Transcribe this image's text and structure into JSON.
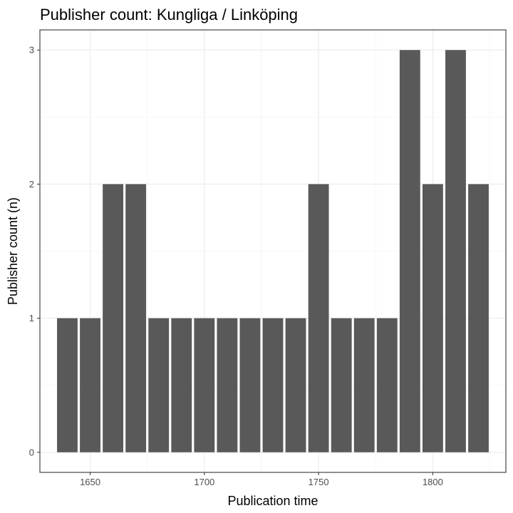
{
  "chart_data": {
    "type": "bar",
    "title": "Publisher count:  Kungliga / Linköping",
    "xlabel": "Publication time",
    "ylabel": "Publisher count (n)",
    "x": [
      1640,
      1650,
      1660,
      1670,
      1680,
      1690,
      1700,
      1710,
      1720,
      1730,
      1740,
      1750,
      1760,
      1770,
      1780,
      1790,
      1800,
      1810,
      1820
    ],
    "values": [
      1,
      1,
      2,
      2,
      1,
      1,
      1,
      1,
      1,
      1,
      1,
      2,
      1,
      1,
      1,
      3,
      2,
      3,
      2
    ],
    "bar_width": 9,
    "xlim": [
      1628,
      1832
    ],
    "ylim": [
      -0.15,
      3.15
    ],
    "x_ticks": [
      1650,
      1700,
      1750,
      1800
    ],
    "x_tick_labels": [
      "1650",
      "1700",
      "1750",
      "1800"
    ],
    "y_ticks": [
      0,
      1,
      2,
      3
    ],
    "y_tick_labels": [
      "0",
      "1",
      "2",
      "3"
    ],
    "grid": true,
    "legend": "none",
    "colors": {
      "bar": "#595959",
      "panel_border": "#333333",
      "grid_major": "#ebebeb",
      "grid_minor": "#f5f5f5",
      "tick": "#333333"
    }
  }
}
